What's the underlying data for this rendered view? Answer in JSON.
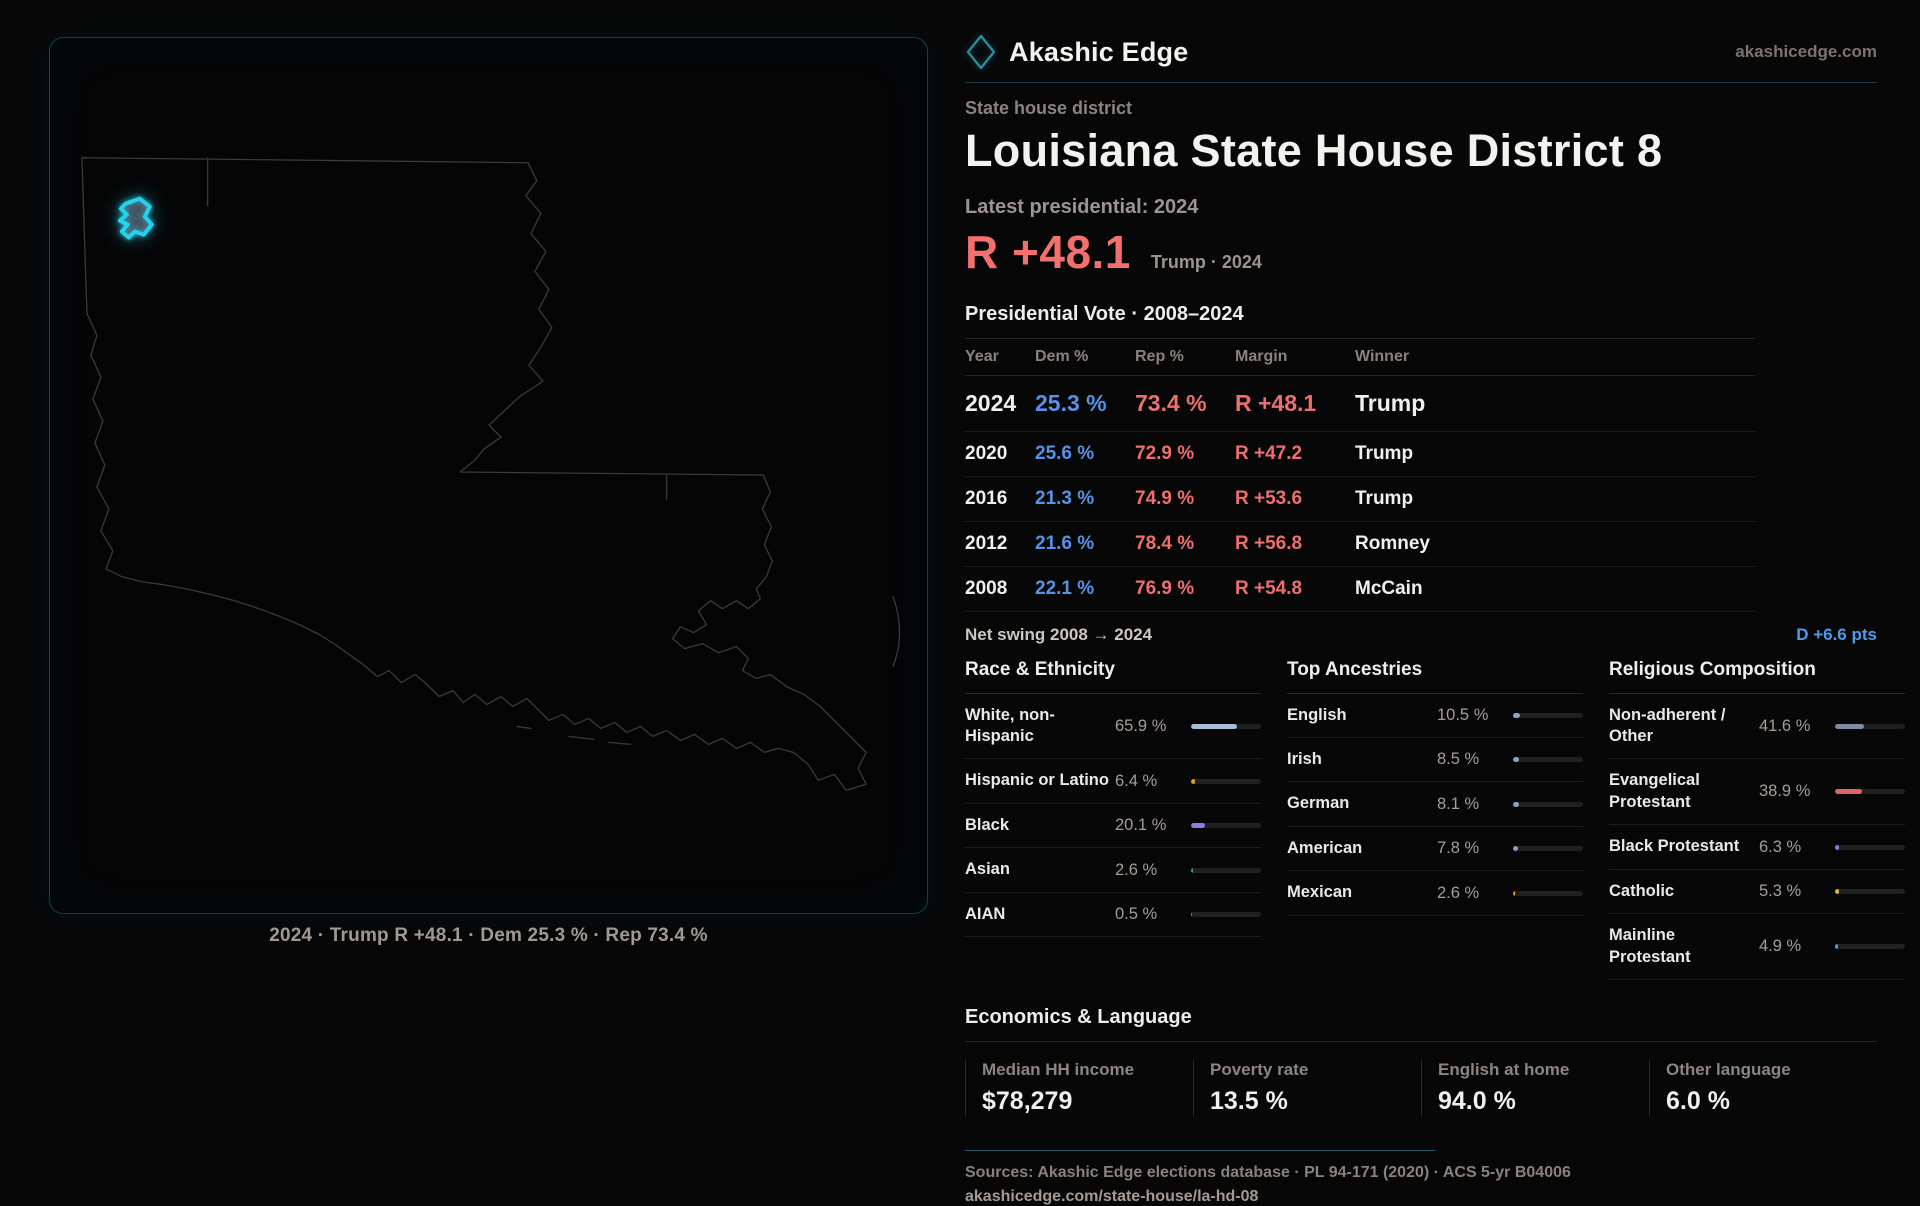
{
  "brand": {
    "name": "Akashic Edge",
    "domain": "akashicedge.com"
  },
  "map": {
    "caption": "2024 · Trump R +48.1 · Dem 25.3 % · Rep 73.4 %",
    "highlight_color": "#25d2ee",
    "outline_color": "#3a3a3d"
  },
  "header": {
    "kicker": "State house district",
    "title": "Louisiana State House District 8",
    "latest_label": "Latest presidential: 2024",
    "margin_value": "R +48.1",
    "margin_caption": "Trump · 2024",
    "margin_color": "#f4706e"
  },
  "table": {
    "title": "Presidential Vote · 2008–2024",
    "columns": [
      "Year",
      "Dem %",
      "Rep %",
      "Margin",
      "Winner"
    ],
    "rows": [
      {
        "year": "2024",
        "dem": "25.3 %",
        "rep": "73.4 %",
        "margin": "R +48.1",
        "winner": "Trump"
      },
      {
        "year": "2020",
        "dem": "25.6 %",
        "rep": "72.9 %",
        "margin": "R +47.2",
        "winner": "Trump"
      },
      {
        "year": "2016",
        "dem": "21.3 %",
        "rep": "74.9 %",
        "margin": "R +53.6",
        "winner": "Trump"
      },
      {
        "year": "2012",
        "dem": "21.6 %",
        "rep": "78.4 %",
        "margin": "R +56.8",
        "winner": "Romney"
      },
      {
        "year": "2008",
        "dem": "22.1 %",
        "rep": "76.9 %",
        "margin": "R +54.8",
        "winner": "McCain"
      }
    ]
  },
  "swing": {
    "label": "Net swing 2008 → 2024",
    "value": "D +6.6 pts",
    "value_color": "#4f9bea"
  },
  "demographics": [
    {
      "title": "Race & Ethnicity",
      "rows": [
        {
          "label": "White, non-Hispanic",
          "value": "65.9 %",
          "pct": 65.9,
          "color": "#a9bdd6"
        },
        {
          "label": "Hispanic or Latino",
          "value": "6.4 %",
          "pct": 6.4,
          "color": "#e09a3a"
        },
        {
          "label": "Black",
          "value": "20.1 %",
          "pct": 20.1,
          "color": "#8b7ce8"
        },
        {
          "label": "Asian",
          "value": "2.6 %",
          "pct": 2.6,
          "color": "#27a57f"
        },
        {
          "label": "AIAN",
          "value": "0.5 %",
          "pct": 0.5,
          "color": "#8f8a86"
        }
      ]
    },
    {
      "title": "Top Ancestries",
      "rows": [
        {
          "label": "English",
          "value": "10.5 %",
          "pct": 10.5,
          "color": "#8ca3c3"
        },
        {
          "label": "Irish",
          "value": "8.5 %",
          "pct": 8.5,
          "color": "#8ca3c3"
        },
        {
          "label": "German",
          "value": "8.1 %",
          "pct": 8.1,
          "color": "#8ca3c3"
        },
        {
          "label": "American",
          "value": "7.8 %",
          "pct": 7.8,
          "color": "#8ca3c3"
        },
        {
          "label": "Mexican",
          "value": "2.6 %",
          "pct": 2.6,
          "color": "#e09a3a"
        }
      ]
    },
    {
      "title": "Religious Composition",
      "rows": [
        {
          "label": "Non-adherent / Other",
          "value": "41.6 %",
          "pct": 41.6,
          "color": "#7e8ba0"
        },
        {
          "label": "Evangelical Protestant",
          "value": "38.9 %",
          "pct": 38.9,
          "color": "#e06464"
        },
        {
          "label": "Black Protestant",
          "value": "6.3 %",
          "pct": 6.3,
          "color": "#8b7ce8"
        },
        {
          "label": "Catholic",
          "value": "5.3 %",
          "pct": 5.3,
          "color": "#e0b13a"
        },
        {
          "label": "Mainline Protestant",
          "value": "4.9 %",
          "pct": 4.9,
          "color": "#4f9bea"
        }
      ]
    }
  ],
  "economics": {
    "title": "Economics & Language",
    "stats": [
      {
        "label": "Median HH income",
        "value": "$78,279"
      },
      {
        "label": "Poverty rate",
        "value": "13.5 %"
      },
      {
        "label": "English at home",
        "value": "94.0 %"
      },
      {
        "label": "Other language",
        "value": "6.0 %"
      }
    ]
  },
  "footer": {
    "sources": "Sources: Akashic Edge elections database · PL 94-171 (2020) · ACS 5-yr B04006",
    "url": "akashicedge.com/state-house/la-hd-08"
  }
}
